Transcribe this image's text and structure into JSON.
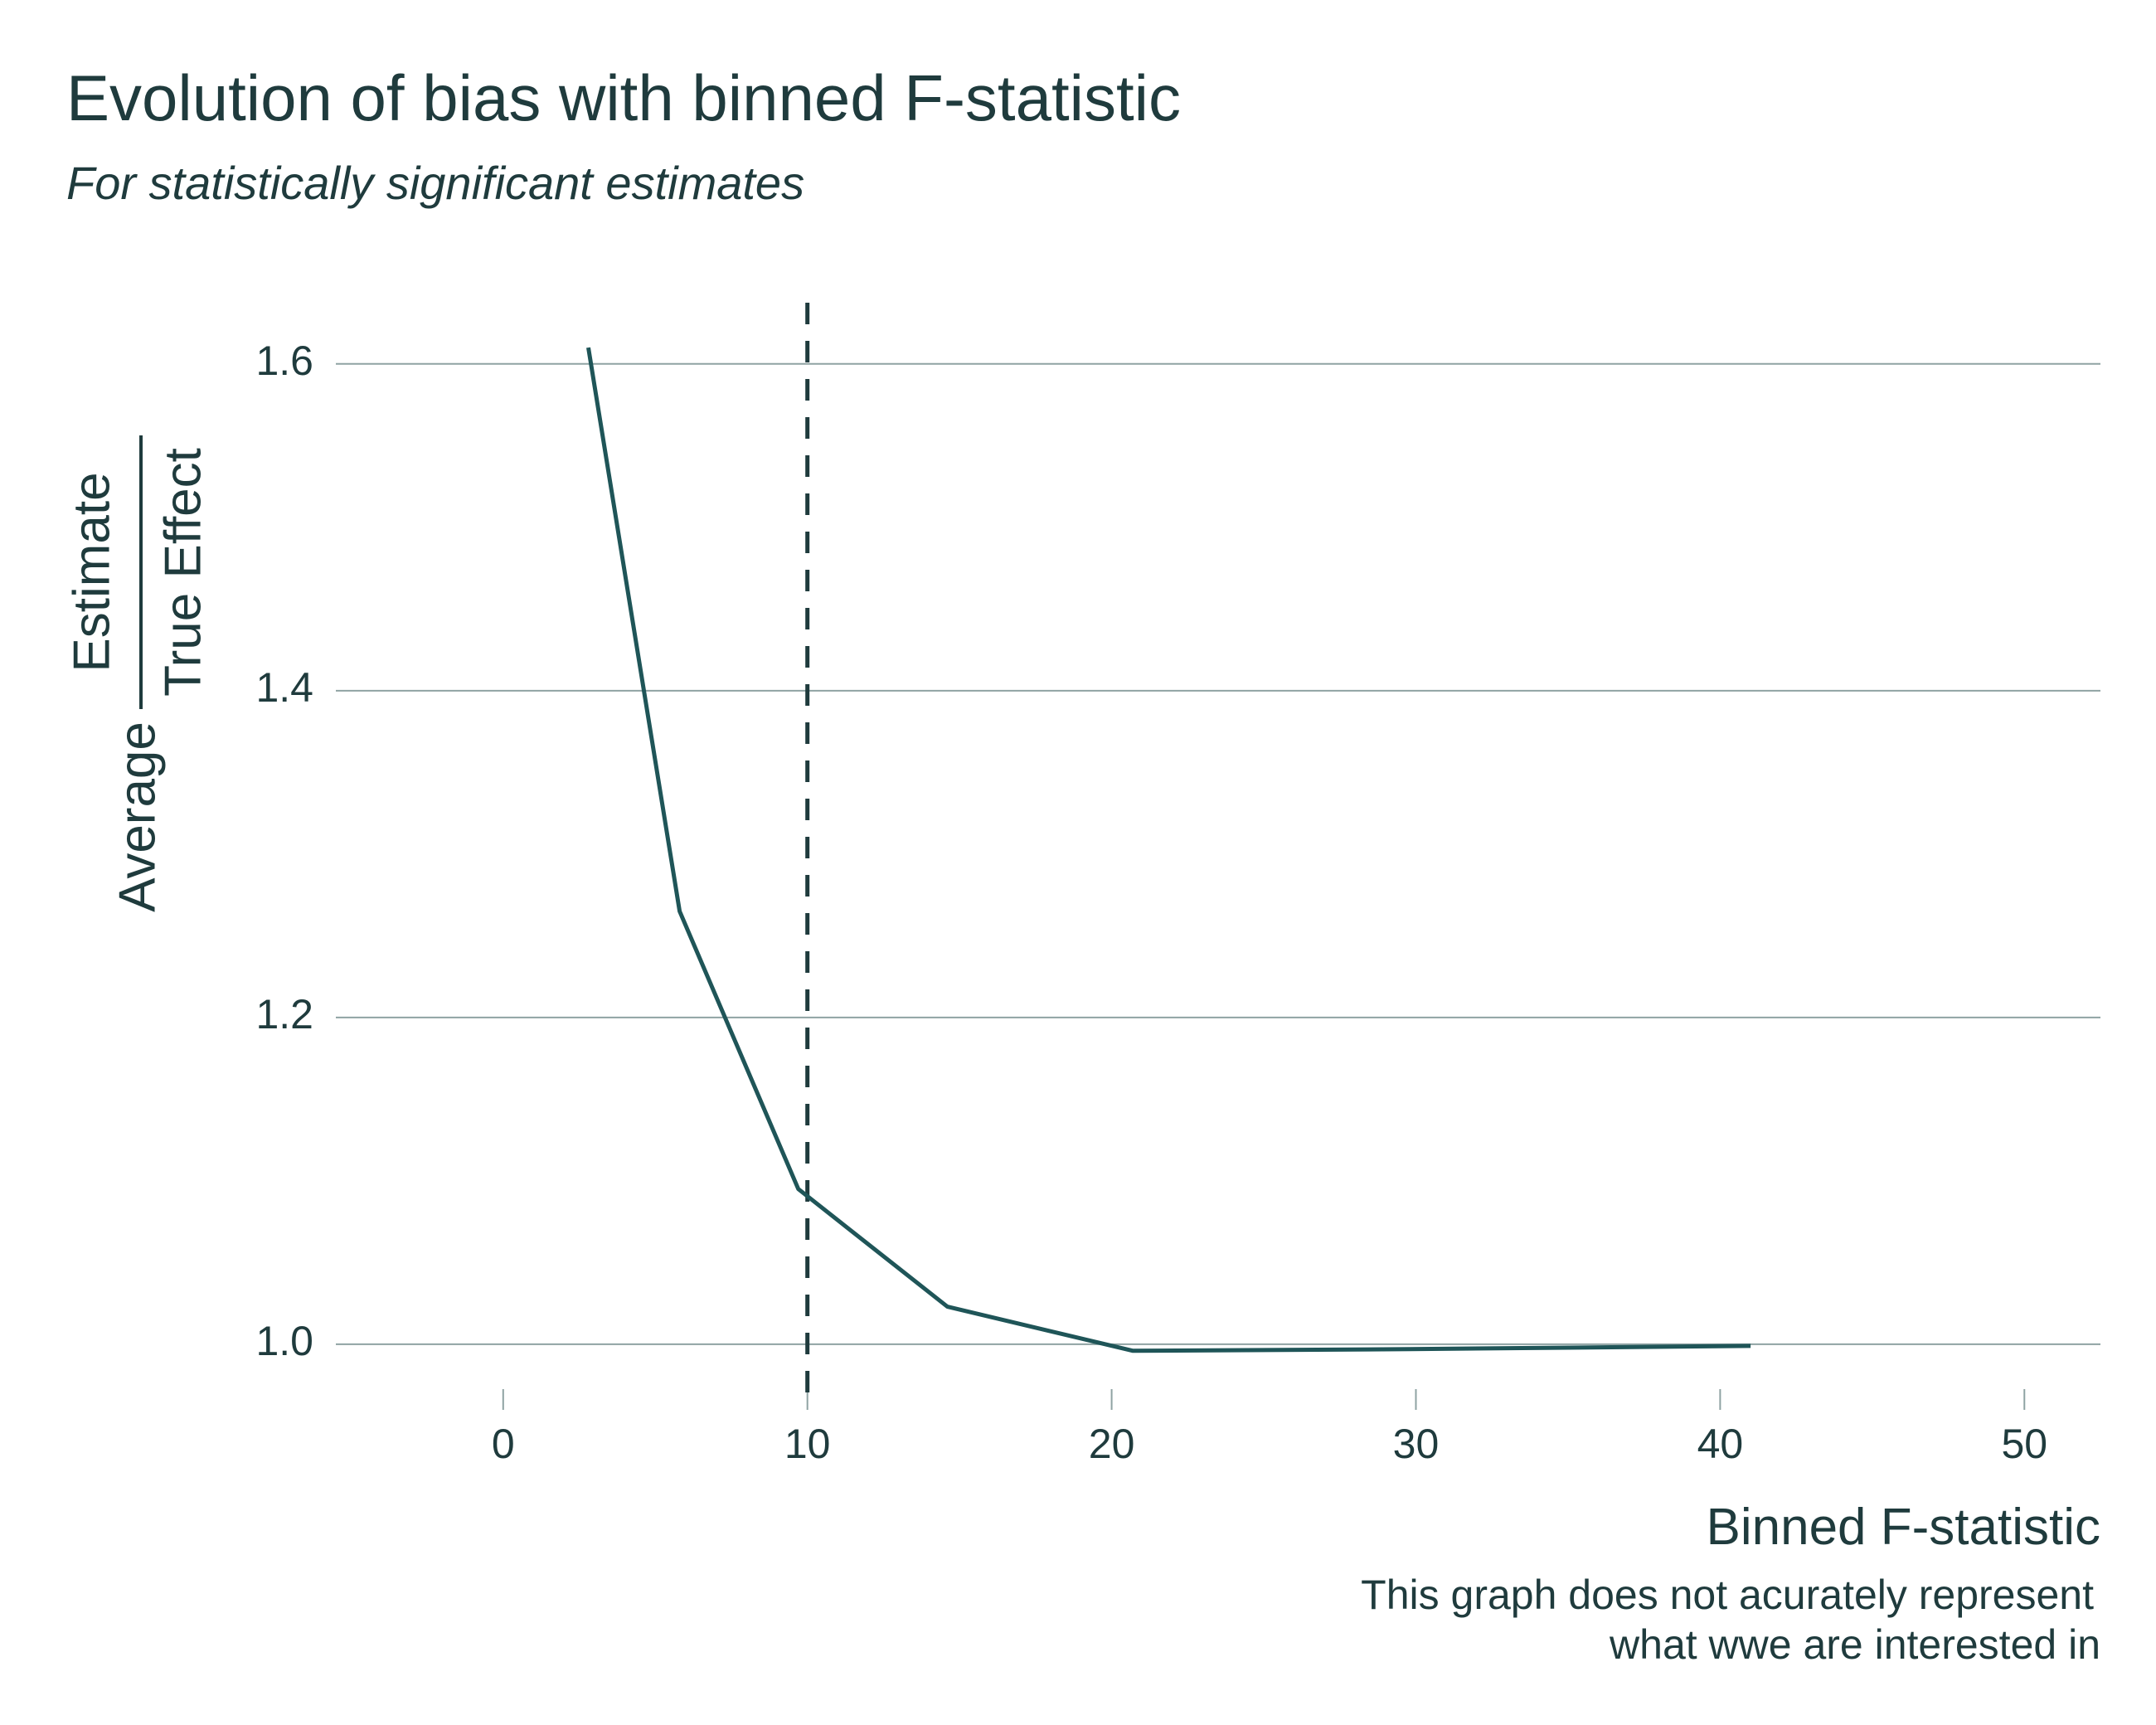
{
  "chart_data": {
    "type": "line",
    "title": "Evolution of bias with binned F-statistic",
    "subtitle": "For statistically significant estimates",
    "xlabel": "Binned F-statistic",
    "ylabel": {
      "prefix": "Average",
      "numerator": "Estimate",
      "denominator": "True Effect"
    },
    "caption": [
      "This graph does not acurately represent",
      "what wwe are interested in"
    ],
    "xlim": [
      -5.5,
      52.5
    ],
    "ylim": [
      0.97,
      1.64
    ],
    "x_ticks": [
      {
        "value": 0,
        "label": "0"
      },
      {
        "value": 10,
        "label": "10"
      },
      {
        "value": 20,
        "label": "20"
      },
      {
        "value": 30,
        "label": "30"
      },
      {
        "value": 40,
        "label": "40"
      },
      {
        "value": 50,
        "label": "50"
      }
    ],
    "y_ticks": [
      {
        "value": 1.0,
        "label": "1.0"
      },
      {
        "value": 1.2,
        "label": "1.2"
      },
      {
        "value": 1.4,
        "label": "1.4"
      },
      {
        "value": 1.6,
        "label": "1.6"
      }
    ],
    "grid": "horizontal",
    "vline": {
      "x": 10,
      "style": "dashed"
    },
    "series": [
      {
        "x": [
          2.8,
          5.8,
          9.7,
          14.6,
          20.7,
          29.8,
          41.0
        ],
        "y": [
          1.61,
          1.265,
          1.095,
          1.023,
          0.996,
          0.997,
          0.999
        ]
      }
    ],
    "colors": {
      "line": "#1f5558",
      "text": "#1f3b3d",
      "grid": "#8fa3a3"
    }
  }
}
